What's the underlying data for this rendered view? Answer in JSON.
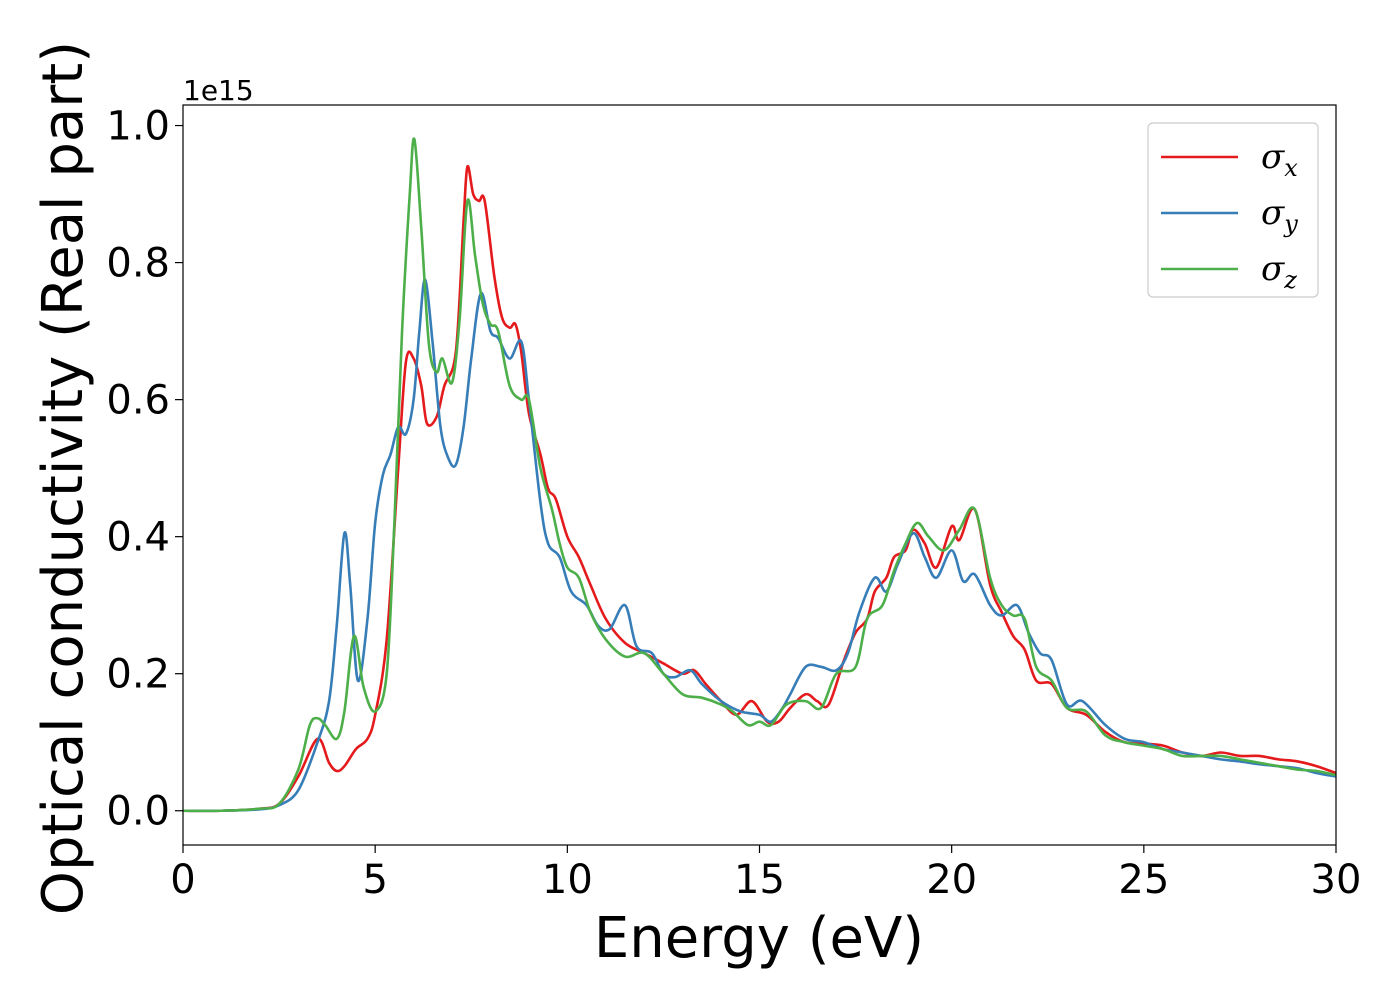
{
  "chart_data": {
    "type": "line",
    "title": "",
    "xlabel": "Energy (eV)",
    "ylabel": "Optical conductivity (Real part)",
    "y_offset_label": "1e15",
    "xlim": [
      0,
      30
    ],
    "ylim": [
      -0.05,
      1.03
    ],
    "xticks": [
      0,
      5,
      10,
      15,
      20,
      25,
      30
    ],
    "yticks": [
      0.0,
      0.2,
      0.4,
      0.6,
      0.8,
      1.0
    ],
    "xtick_labels": [
      "0",
      "5",
      "10",
      "15",
      "20",
      "25",
      "30"
    ],
    "ytick_labels": [
      "0.0",
      "0.2",
      "0.4",
      "0.6",
      "0.8",
      "1.0"
    ],
    "grid": false,
    "legend_position": "top-right",
    "series": [
      {
        "name_base": "σ",
        "name_sub": "x",
        "color": "#e41a1c",
        "points": [
          [
            0,
            0
          ],
          [
            1,
            0
          ],
          [
            2,
            0.003
          ],
          [
            2.5,
            0.01
          ],
          [
            3,
            0.05
          ],
          [
            3.5,
            0.105
          ],
          [
            3.8,
            0.07
          ],
          [
            4,
            0.058
          ],
          [
            4.2,
            0.065
          ],
          [
            4.5,
            0.09
          ],
          [
            4.8,
            0.105
          ],
          [
            5,
            0.14
          ],
          [
            5.3,
            0.25
          ],
          [
            5.6,
            0.5
          ],
          [
            5.8,
            0.655
          ],
          [
            6,
            0.66
          ],
          [
            6.2,
            0.62
          ],
          [
            6.35,
            0.565
          ],
          [
            6.6,
            0.575
          ],
          [
            6.8,
            0.62
          ],
          [
            7.1,
            0.67
          ],
          [
            7.3,
            0.86
          ],
          [
            7.4,
            0.94
          ],
          [
            7.55,
            0.9
          ],
          [
            7.7,
            0.89
          ],
          [
            7.85,
            0.89
          ],
          [
            8.1,
            0.78
          ],
          [
            8.3,
            0.72
          ],
          [
            8.5,
            0.705
          ],
          [
            8.65,
            0.71
          ],
          [
            8.8,
            0.67
          ],
          [
            9,
            0.58
          ],
          [
            9.3,
            0.52
          ],
          [
            9.5,
            0.47
          ],
          [
            9.7,
            0.455
          ],
          [
            10,
            0.4
          ],
          [
            10.3,
            0.37
          ],
          [
            10.6,
            0.33
          ],
          [
            11,
            0.28
          ],
          [
            11.5,
            0.245
          ],
          [
            12,
            0.23
          ],
          [
            12.5,
            0.215
          ],
          [
            13,
            0.2
          ],
          [
            13.3,
            0.205
          ],
          [
            13.6,
            0.185
          ],
          [
            14,
            0.16
          ],
          [
            14.4,
            0.14
          ],
          [
            14.8,
            0.16
          ],
          [
            15.2,
            0.13
          ],
          [
            15.5,
            0.13
          ],
          [
            15.8,
            0.15
          ],
          [
            16.2,
            0.17
          ],
          [
            16.5,
            0.16
          ],
          [
            16.8,
            0.155
          ],
          [
            17.2,
            0.22
          ],
          [
            17.5,
            0.26
          ],
          [
            17.8,
            0.28
          ],
          [
            18,
            0.32
          ],
          [
            18.3,
            0.34
          ],
          [
            18.5,
            0.37
          ],
          [
            18.8,
            0.38
          ],
          [
            19,
            0.41
          ],
          [
            19.3,
            0.39
          ],
          [
            19.6,
            0.355
          ],
          [
            20,
            0.415
          ],
          [
            20.2,
            0.395
          ],
          [
            20.6,
            0.44
          ],
          [
            21,
            0.33
          ],
          [
            21.3,
            0.29
          ],
          [
            21.6,
            0.255
          ],
          [
            21.9,
            0.235
          ],
          [
            22.2,
            0.19
          ],
          [
            22.6,
            0.185
          ],
          [
            23,
            0.15
          ],
          [
            23.5,
            0.14
          ],
          [
            24,
            0.115
          ],
          [
            24.5,
            0.1
          ],
          [
            25,
            0.098
          ],
          [
            25.5,
            0.095
          ],
          [
            26,
            0.085
          ],
          [
            26.5,
            0.08
          ],
          [
            27,
            0.085
          ],
          [
            27.5,
            0.08
          ],
          [
            28,
            0.08
          ],
          [
            28.5,
            0.075
          ],
          [
            29,
            0.072
          ],
          [
            29.5,
            0.065
          ],
          [
            30,
            0.055
          ]
        ]
      },
      {
        "name_base": "σ",
        "name_sub": "y",
        "color": "#377eb8",
        "points": [
          [
            0,
            0
          ],
          [
            1,
            0
          ],
          [
            2,
            0.002
          ],
          [
            2.5,
            0.008
          ],
          [
            3,
            0.03
          ],
          [
            3.5,
            0.1
          ],
          [
            3.8,
            0.16
          ],
          [
            4,
            0.27
          ],
          [
            4.2,
            0.405
          ],
          [
            4.35,
            0.33
          ],
          [
            4.55,
            0.19
          ],
          [
            4.8,
            0.28
          ],
          [
            5,
            0.42
          ],
          [
            5.2,
            0.49
          ],
          [
            5.4,
            0.52
          ],
          [
            5.6,
            0.56
          ],
          [
            5.8,
            0.55
          ],
          [
            6,
            0.6
          ],
          [
            6.15,
            0.7
          ],
          [
            6.3,
            0.775
          ],
          [
            6.5,
            0.68
          ],
          [
            6.7,
            0.56
          ],
          [
            6.9,
            0.515
          ],
          [
            7.1,
            0.505
          ],
          [
            7.3,
            0.56
          ],
          [
            7.5,
            0.66
          ],
          [
            7.75,
            0.755
          ],
          [
            8,
            0.7
          ],
          [
            8.2,
            0.69
          ],
          [
            8.5,
            0.66
          ],
          [
            8.8,
            0.685
          ],
          [
            9,
            0.6
          ],
          [
            9.3,
            0.45
          ],
          [
            9.5,
            0.39
          ],
          [
            9.8,
            0.37
          ],
          [
            10.1,
            0.32
          ],
          [
            10.5,
            0.3
          ],
          [
            10.8,
            0.27
          ],
          [
            11.1,
            0.265
          ],
          [
            11.5,
            0.3
          ],
          [
            11.8,
            0.24
          ],
          [
            12.2,
            0.23
          ],
          [
            12.5,
            0.2
          ],
          [
            12.8,
            0.195
          ],
          [
            13.2,
            0.205
          ],
          [
            13.5,
            0.185
          ],
          [
            14,
            0.16
          ],
          [
            14.5,
            0.145
          ],
          [
            15,
            0.14
          ],
          [
            15.3,
            0.13
          ],
          [
            15.6,
            0.15
          ],
          [
            15.8,
            0.17
          ],
          [
            16.2,
            0.21
          ],
          [
            16.6,
            0.21
          ],
          [
            17,
            0.205
          ],
          [
            17.3,
            0.23
          ],
          [
            17.6,
            0.29
          ],
          [
            18,
            0.34
          ],
          [
            18.3,
            0.32
          ],
          [
            18.6,
            0.36
          ],
          [
            19,
            0.405
          ],
          [
            19.3,
            0.37
          ],
          [
            19.6,
            0.34
          ],
          [
            20,
            0.38
          ],
          [
            20.3,
            0.335
          ],
          [
            20.6,
            0.345
          ],
          [
            21,
            0.3
          ],
          [
            21.3,
            0.285
          ],
          [
            21.7,
            0.3
          ],
          [
            22,
            0.26
          ],
          [
            22.3,
            0.23
          ],
          [
            22.6,
            0.22
          ],
          [
            23,
            0.155
          ],
          [
            23.4,
            0.16
          ],
          [
            24,
            0.125
          ],
          [
            24.5,
            0.105
          ],
          [
            25,
            0.1
          ],
          [
            25.5,
            0.09
          ],
          [
            26,
            0.085
          ],
          [
            26.5,
            0.08
          ],
          [
            27,
            0.075
          ],
          [
            27.5,
            0.072
          ],
          [
            28,
            0.068
          ],
          [
            28.5,
            0.065
          ],
          [
            29,
            0.062
          ],
          [
            29.5,
            0.055
          ],
          [
            30,
            0.05
          ]
        ]
      },
      {
        "name_base": "σ",
        "name_sub": "z",
        "color": "#4daf4a",
        "points": [
          [
            0,
            0
          ],
          [
            1,
            0
          ],
          [
            2,
            0.003
          ],
          [
            2.5,
            0.01
          ],
          [
            3,
            0.06
          ],
          [
            3.3,
            0.125
          ],
          [
            3.5,
            0.135
          ],
          [
            3.7,
            0.125
          ],
          [
            4,
            0.105
          ],
          [
            4.2,
            0.145
          ],
          [
            4.45,
            0.255
          ],
          [
            4.7,
            0.18
          ],
          [
            5,
            0.145
          ],
          [
            5.3,
            0.2
          ],
          [
            5.5,
            0.42
          ],
          [
            5.7,
            0.7
          ],
          [
            5.9,
            0.9
          ],
          [
            6.02,
            0.98
          ],
          [
            6.2,
            0.85
          ],
          [
            6.4,
            0.68
          ],
          [
            6.6,
            0.64
          ],
          [
            6.75,
            0.66
          ],
          [
            7,
            0.625
          ],
          [
            7.2,
            0.72
          ],
          [
            7.4,
            0.89
          ],
          [
            7.6,
            0.81
          ],
          [
            7.8,
            0.74
          ],
          [
            8,
            0.71
          ],
          [
            8.2,
            0.7
          ],
          [
            8.5,
            0.62
          ],
          [
            8.8,
            0.6
          ],
          [
            9,
            0.6
          ],
          [
            9.3,
            0.5
          ],
          [
            9.6,
            0.44
          ],
          [
            9.8,
            0.39
          ],
          [
            10,
            0.355
          ],
          [
            10.3,
            0.34
          ],
          [
            10.6,
            0.29
          ],
          [
            11,
            0.25
          ],
          [
            11.5,
            0.225
          ],
          [
            12,
            0.23
          ],
          [
            12.5,
            0.2
          ],
          [
            13,
            0.17
          ],
          [
            13.5,
            0.165
          ],
          [
            14,
            0.155
          ],
          [
            14.3,
            0.145
          ],
          [
            14.7,
            0.125
          ],
          [
            15,
            0.13
          ],
          [
            15.3,
            0.125
          ],
          [
            15.7,
            0.155
          ],
          [
            16.2,
            0.16
          ],
          [
            16.6,
            0.15
          ],
          [
            17,
            0.2
          ],
          [
            17.5,
            0.21
          ],
          [
            17.8,
            0.28
          ],
          [
            18.2,
            0.3
          ],
          [
            18.5,
            0.35
          ],
          [
            18.8,
            0.39
          ],
          [
            19.1,
            0.42
          ],
          [
            19.4,
            0.4
          ],
          [
            19.8,
            0.38
          ],
          [
            20.2,
            0.41
          ],
          [
            20.6,
            0.44
          ],
          [
            21,
            0.34
          ],
          [
            21.3,
            0.3
          ],
          [
            21.6,
            0.285
          ],
          [
            21.9,
            0.28
          ],
          [
            22.2,
            0.21
          ],
          [
            22.6,
            0.19
          ],
          [
            23,
            0.15
          ],
          [
            23.5,
            0.145
          ],
          [
            24,
            0.11
          ],
          [
            24.5,
            0.1
          ],
          [
            25,
            0.095
          ],
          [
            25.5,
            0.09
          ],
          [
            26,
            0.08
          ],
          [
            26.5,
            0.08
          ],
          [
            27,
            0.08
          ],
          [
            27.5,
            0.075
          ],
          [
            28,
            0.07
          ],
          [
            28.5,
            0.065
          ],
          [
            29,
            0.06
          ],
          [
            29.5,
            0.058
          ],
          [
            30,
            0.052
          ]
        ]
      }
    ]
  }
}
